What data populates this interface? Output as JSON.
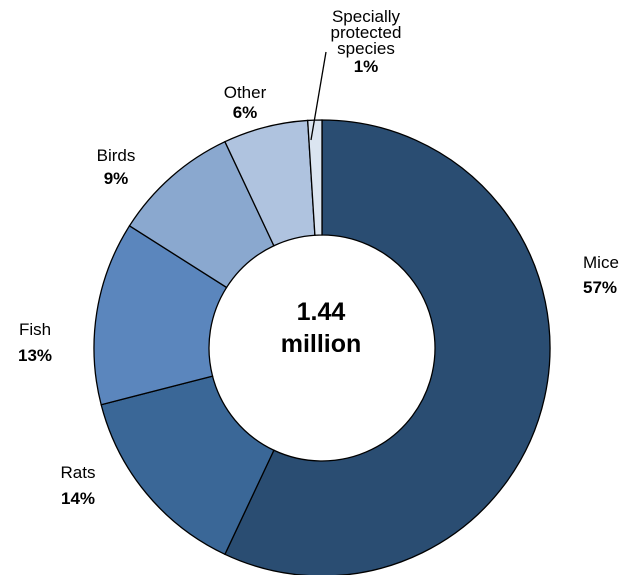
{
  "chart_data": {
    "type": "pie",
    "donut": true,
    "center_label": [
      "1.44",
      "million"
    ],
    "slices": [
      {
        "label": "Mice",
        "value": 57,
        "value_label": "57%",
        "color": "#2a4d72"
      },
      {
        "label": "Rats",
        "value": 14,
        "value_label": "14%",
        "color": "#3a6797"
      },
      {
        "label": "Fish",
        "value": 13,
        "value_label": "13%",
        "color": "#5b86bd"
      },
      {
        "label": "Birds",
        "value": 9,
        "value_label": "9%",
        "color": "#8aa8cf"
      },
      {
        "label": "Other",
        "value": 6,
        "value_label": "6%",
        "color": "#afc3df"
      },
      {
        "label": "Specially protected species",
        "label_lines": [
          "Specially",
          "protected",
          "species"
        ],
        "value": 1,
        "value_label": "1%",
        "color": "#dbe5f1"
      }
    ],
    "legend": "none",
    "grid": false
  }
}
